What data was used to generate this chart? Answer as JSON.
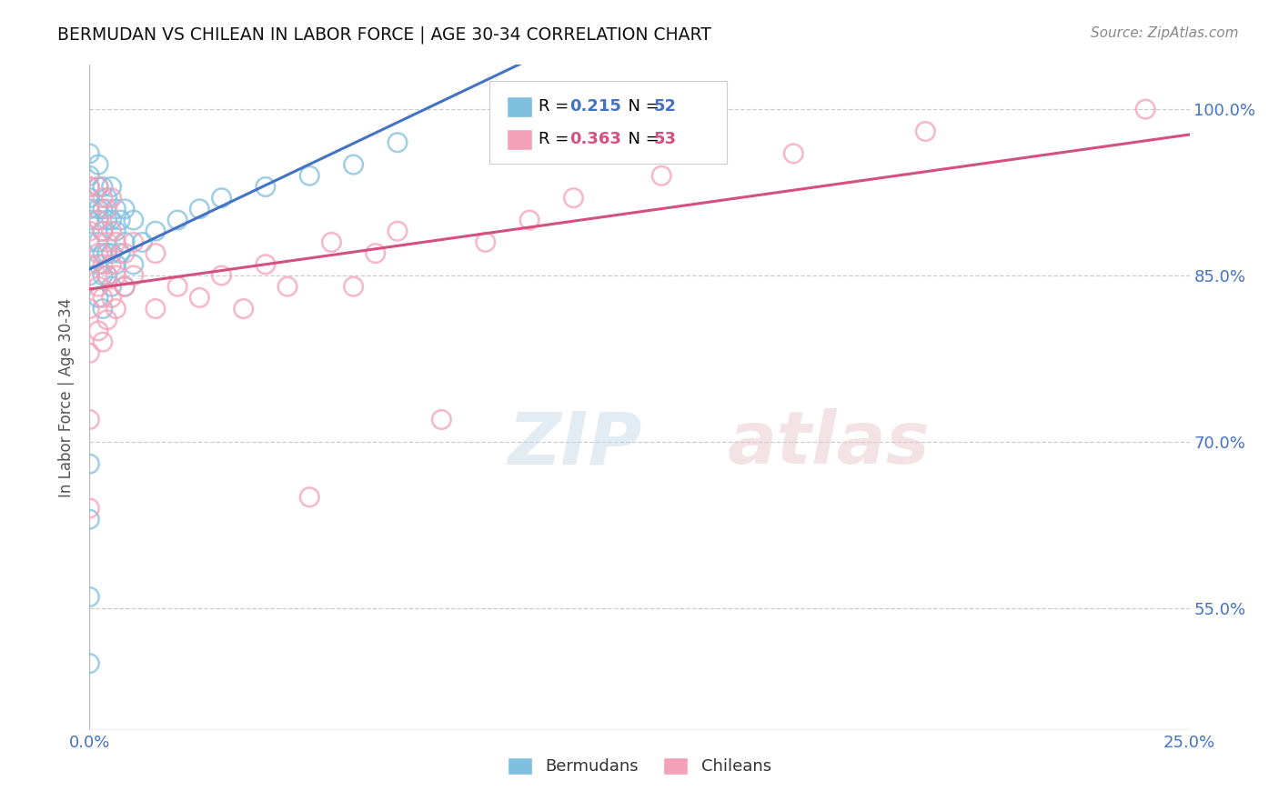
{
  "title": "BERMUDAN VS CHILEAN IN LABOR FORCE | AGE 30-34 CORRELATION CHART",
  "source": "Source: ZipAtlas.com",
  "ylabel": "In Labor Force | Age 30-34",
  "xmin": 0.0,
  "xmax": 0.25,
  "ymin": 0.44,
  "ymax": 1.04,
  "ytick_positions": [
    0.55,
    0.7,
    0.85,
    1.0
  ],
  "ytick_labels": [
    "55.0%",
    "70.0%",
    "85.0%",
    "100.0%"
  ],
  "xtick_positions": [
    0.0,
    0.05,
    0.1,
    0.15,
    0.2,
    0.25
  ],
  "xtick_labels": [
    "0.0%",
    "",
    "",
    "",
    "",
    "25.0%"
  ],
  "legend_r_blue": "0.215",
  "legend_n_blue": "52",
  "legend_r_pink": "0.363",
  "legend_n_pink": "53",
  "blue_scatter": "#7fbfdf",
  "pink_scatter": "#f4a0b8",
  "line_blue": "#4472c4",
  "line_pink": "#d45080",
  "bermudans_x": [
    0.0,
    0.0,
    0.0,
    0.0,
    0.0,
    0.0,
    0.0,
    0.0,
    0.0,
    0.0,
    0.0,
    0.0,
    0.002,
    0.002,
    0.002,
    0.002,
    0.002,
    0.002,
    0.002,
    0.003,
    0.003,
    0.003,
    0.003,
    0.003,
    0.003,
    0.004,
    0.004,
    0.004,
    0.004,
    0.005,
    0.005,
    0.005,
    0.005,
    0.006,
    0.006,
    0.006,
    0.007,
    0.007,
    0.008,
    0.008,
    0.008,
    0.01,
    0.01,
    0.012,
    0.015,
    0.02,
    0.025,
    0.03,
    0.04,
    0.05,
    0.06,
    0.07
  ],
  "bermudans_y": [
    0.5,
    0.56,
    0.63,
    0.68,
    0.85,
    0.88,
    0.9,
    0.91,
    0.92,
    0.93,
    0.94,
    0.96,
    0.83,
    0.86,
    0.88,
    0.9,
    0.91,
    0.93,
    0.95,
    0.82,
    0.85,
    0.87,
    0.89,
    0.91,
    0.93,
    0.85,
    0.87,
    0.9,
    0.92,
    0.84,
    0.87,
    0.9,
    0.93,
    0.86,
    0.89,
    0.91,
    0.87,
    0.9,
    0.84,
    0.88,
    0.91,
    0.86,
    0.9,
    0.88,
    0.89,
    0.9,
    0.91,
    0.92,
    0.93,
    0.94,
    0.95,
    0.97
  ],
  "chileans_x": [
    0.0,
    0.0,
    0.0,
    0.0,
    0.0,
    0.0,
    0.0,
    0.002,
    0.002,
    0.002,
    0.002,
    0.002,
    0.003,
    0.003,
    0.003,
    0.003,
    0.003,
    0.004,
    0.004,
    0.004,
    0.004,
    0.005,
    0.005,
    0.005,
    0.005,
    0.006,
    0.006,
    0.006,
    0.008,
    0.008,
    0.01,
    0.01,
    0.015,
    0.015,
    0.02,
    0.025,
    0.03,
    0.035,
    0.04,
    0.045,
    0.05,
    0.055,
    0.06,
    0.065,
    0.07,
    0.08,
    0.09,
    0.1,
    0.11,
    0.13,
    0.16,
    0.19,
    0.24
  ],
  "chileans_y": [
    0.64,
    0.72,
    0.78,
    0.82,
    0.86,
    0.89,
    0.93,
    0.8,
    0.84,
    0.87,
    0.9,
    0.93,
    0.79,
    0.83,
    0.86,
    0.89,
    0.92,
    0.81,
    0.85,
    0.88,
    0.91,
    0.83,
    0.86,
    0.89,
    0.92,
    0.82,
    0.85,
    0.88,
    0.84,
    0.87,
    0.85,
    0.88,
    0.82,
    0.87,
    0.84,
    0.83,
    0.85,
    0.82,
    0.86,
    0.84,
    0.65,
    0.88,
    0.84,
    0.87,
    0.89,
    0.72,
    0.88,
    0.9,
    0.92,
    0.94,
    0.96,
    0.98,
    1.0
  ]
}
